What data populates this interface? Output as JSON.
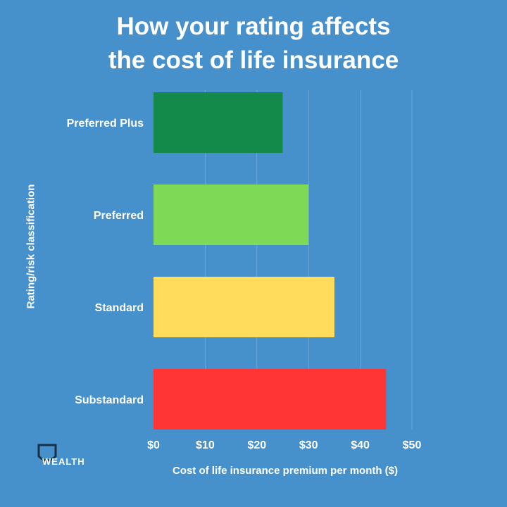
{
  "chart_data": {
    "type": "bar",
    "orientation": "horizontal",
    "title_lines": [
      "How your rating affects",
      "the cost of life insurance"
    ],
    "categories": [
      "Preferred Plus",
      "Preferred",
      "Standard",
      "Substandard"
    ],
    "values": [
      25,
      30,
      35,
      45
    ],
    "bar_colors": [
      "#138a4a",
      "#7ed957",
      "#ffdc5c",
      "#ff3434"
    ],
    "xlabel": "Cost of life insurance premium per month ($)",
    "ylabel": "Rating/risk classification",
    "xlim": [
      0,
      50
    ],
    "ticks": [
      0,
      10,
      20,
      30,
      40,
      50
    ],
    "tick_labels": [
      "$0",
      "$10",
      "$20",
      "$30",
      "$40",
      "$50"
    ],
    "grid": true
  },
  "logo": {
    "text": "WEALTH",
    "icon": "shield-icon"
  },
  "colors": {
    "background": "#4690cb",
    "grid": "#6aa8d8",
    "text": "#ffffff"
  }
}
